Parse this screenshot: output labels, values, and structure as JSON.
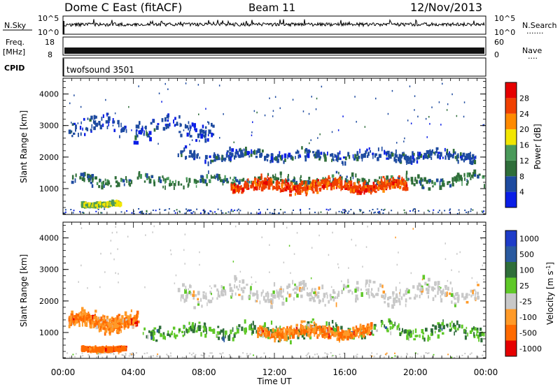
{
  "header": {
    "title": "Dome C East (fitACF)",
    "beam": "Beam 11",
    "date": "12/Nov/2013"
  },
  "colors": {
    "power_scale": [
      "#0a1ee6",
      "#1e4ba0",
      "#2f6e3a",
      "#4a9a5a",
      "#f2e600",
      "#ff8a00",
      "#f04000",
      "#e60000"
    ],
    "velocity_scale": [
      "#1e3cc8",
      "#2a5aa0",
      "#2f6e3a",
      "#5fc828",
      "#c8c8c8",
      "#ff9a28",
      "#ff6a00",
      "#e60000"
    ]
  },
  "panels": {
    "nsky": {
      "left_label": "N.Sky",
      "left_ticks": [
        "10^5",
        "10^0"
      ],
      "right_ticks": [
        "10^5",
        "10^0"
      ],
      "right_label": "N.Search",
      "right_legend": "......."
    },
    "freq": {
      "left_label_line1": "Freq.",
      "left_label_line2": "[MHz]",
      "left_ticks": [
        "18",
        "8"
      ],
      "right_ticks": [
        "60",
        "0"
      ],
      "right_label": "Nave",
      "right_legend": "...."
    },
    "cpid": {
      "label": "CPID",
      "text": "twofsound 3501"
    }
  },
  "chart_data": [
    {
      "type": "heatmap",
      "name": "power",
      "ylabel": "Slant Range [km]",
      "xlabel": "",
      "yticks": [
        1000,
        2000,
        3000,
        4000
      ],
      "ylim": [
        180,
        4500
      ],
      "xlim_hours": [
        0,
        24
      ],
      "colorbar": {
        "label": "Power [dB]",
        "ticks": [
          4,
          8,
          12,
          16,
          20,
          24,
          28
        ],
        "range": [
          0,
          32
        ]
      },
      "features": [
        {
          "hours": [
            0.3,
            23.9
          ],
          "range_km": [
            1000,
            1500
          ],
          "level": "moderate",
          "value_db": 10
        },
        {
          "hours": [
            9.5,
            19.5
          ],
          "range_km": [
            800,
            1350
          ],
          "level": "strong",
          "value_db": 26
        },
        {
          "hours": [
            1.0,
            3.2
          ],
          "range_km": [
            430,
            580
          ],
          "level": "moderate",
          "value_db": 16
        },
        {
          "hours": [
            6.5,
            23.5
          ],
          "range_km": [
            1800,
            2300
          ],
          "level": "weak",
          "value_db": 6
        },
        {
          "hours": [
            0.3,
            8.5
          ],
          "range_km": [
            2500,
            3400
          ],
          "level": "sparse",
          "value_db": 5
        }
      ]
    },
    {
      "type": "heatmap",
      "name": "velocity",
      "ylabel": "Slant Range [km]",
      "xlabel": "Time UT",
      "yticks": [
        1000,
        2000,
        3000,
        4000
      ],
      "ylim": [
        180,
        4500
      ],
      "xlim_hours": [
        0,
        24
      ],
      "xtick_labels": [
        "00:00",
        "04:00",
        "08:00",
        "12:00",
        "16:00",
        "20:00",
        "00:00"
      ],
      "colorbar": {
        "label": "Velocity [m s^-1]",
        "ticks": [
          "1000",
          "500",
          "100",
          "25",
          "-25",
          "-100",
          "-500",
          "-1000"
        ]
      },
      "features": [
        {
          "hours": [
            0.3,
            4.2
          ],
          "range_km": [
            1000,
            1700
          ],
          "velocity": "-100 to -500"
        },
        {
          "hours": [
            1.0,
            3.5
          ],
          "range_km": [
            400,
            560
          ],
          "velocity": "-500"
        },
        {
          "hours": [
            4.5,
            23.9
          ],
          "range_km": [
            700,
            1400
          ],
          "velocity": "25 to 100"
        },
        {
          "hours": [
            11.0,
            17.5
          ],
          "range_km": [
            750,
            1300
          ],
          "velocity": "-100 to -500"
        },
        {
          "hours": [
            6.5,
            23.5
          ],
          "range_km": [
            1800,
            2700
          ],
          "velocity": "-25 to 25"
        }
      ]
    }
  ]
}
